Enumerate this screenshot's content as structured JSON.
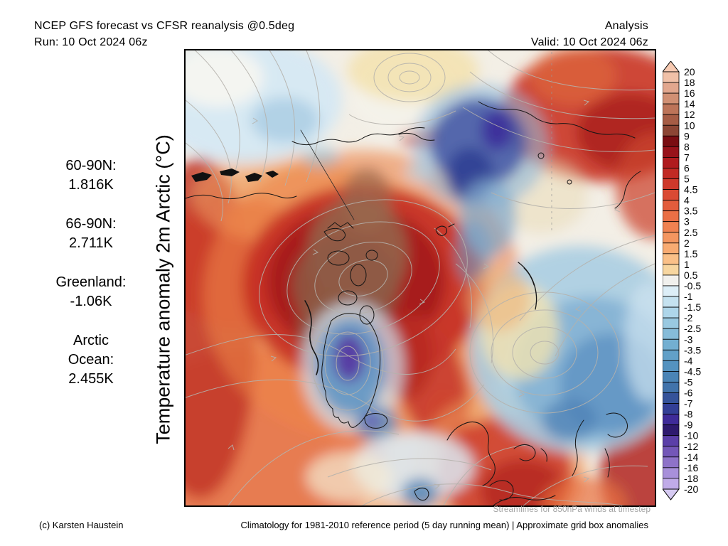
{
  "header": {
    "title": "NCEP GFS forecast vs CFSR reanalysis @0.5deg",
    "run_line": "Run: 10 Oct 2024 06z",
    "mode": "Analysis",
    "valid_line": "Valid: 10 Oct 2024 06z"
  },
  "ylabel": "Temperature anomaly 2m Arctic (°C)",
  "stats": [
    {
      "label": "60-90N:",
      "value": "1.816K"
    },
    {
      "label": "66-90N:",
      "value": "2.711K"
    },
    {
      "label": "Greenland:",
      "value": "-1.06K"
    },
    {
      "label": "Arctic",
      "label2": "Ocean:",
      "value": "2.455K"
    }
  ],
  "map": {
    "projection": "polar stereographic Arctic",
    "overlay": "gray wind streamlines, black coastlines",
    "warm_regions": "central Arctic / Canadian Archipelago (dark red-brown core), Siberia top-right, Europe and Scandinavia bottom-right, North America lower-left",
    "cold_regions": "East Siberian seas (indigo patch upper right of center), Greenland interior (blue-purple), Barents/Kara seas (large blue area right), Iceland (blue-purple spot)",
    "note": "Streamlines for 850hPa winds at timestep"
  },
  "footer": {
    "credit": "(c) Karsten Haustein",
    "climatology": "Climatology for 1981-2010 reference period (5 day running mean) | Approximate grid box anomalies"
  },
  "colorbar": {
    "ticks": [
      "20",
      "18",
      "16",
      "14",
      "12",
      "10",
      "9",
      "8",
      "7",
      "6",
      "5",
      "4.5",
      "4",
      "3.5",
      "3",
      "2.5",
      "2",
      "1.5",
      "1",
      "0.5",
      "-0.5",
      "-1",
      "-1.5",
      "-2",
      "-2.5",
      "-3",
      "-3.5",
      "-4",
      "-4.5",
      "-5",
      "-6",
      "-7",
      "-8",
      "-9",
      "-10",
      "-12",
      "-14",
      "-16",
      "-18",
      "-20"
    ],
    "segment_colors": [
      "#f1c1a8",
      "#e2a78e",
      "#d19074",
      "#bd7459",
      "#a65c45",
      "#8c4534",
      "#7a0d12",
      "#98121a",
      "#b01b1e",
      "#c22a24",
      "#cf392b",
      "#da4a33",
      "#e25c3c",
      "#ea6f46",
      "#f08251",
      "#f49660",
      "#f8ab72",
      "#fac088",
      "#f7d6a0",
      "#f1f0ed",
      "#ddeef7",
      "#c5e2f0",
      "#aed6ea",
      "#99c9e1",
      "#86bcd9",
      "#73afd1",
      "#62a0c8",
      "#5492bf",
      "#4a84b6",
      "#4173ab",
      "#35539a",
      "#333f96",
      "#3f2b99",
      "#2e1a6e",
      "#5b3fa8",
      "#7457b8",
      "#8e72c8",
      "#a890da",
      "#c0abe8"
    ],
    "arrow_top_color": "#f7cab2",
    "arrow_bottom_color": "#d6caf2",
    "border_color": "#000000"
  }
}
